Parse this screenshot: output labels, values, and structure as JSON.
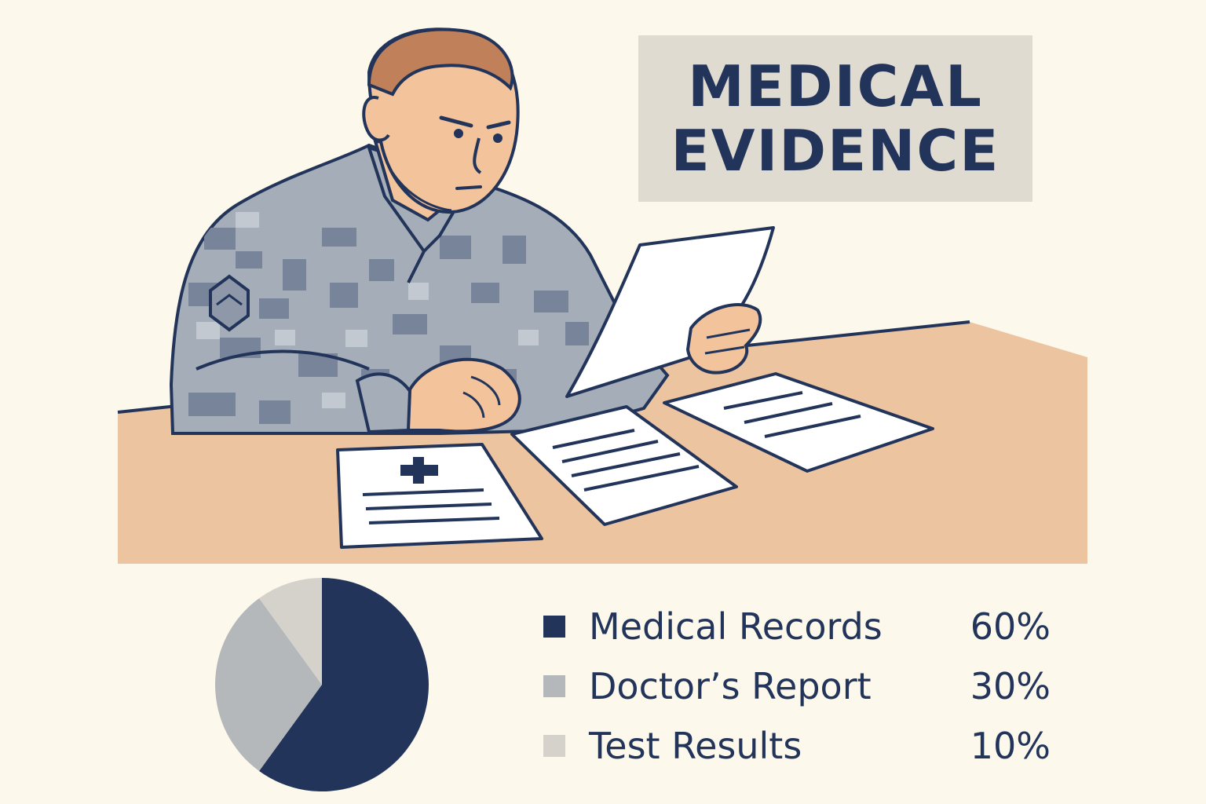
{
  "title": {
    "line1": "MEDICAL",
    "line2": "EVIDENCE"
  },
  "colors": {
    "background": "#fdf8ec",
    "navy": "#22345a",
    "mid_gray": "#b4b8ba",
    "light_gray": "#d5d2cc",
    "desk": "#ecc4a0",
    "skin": "#f3c49c",
    "hair": "#c0805a",
    "camo_base": "#a4adb8",
    "camo_dark": "#78849a"
  },
  "chart_data": {
    "type": "pie",
    "categories": [
      "Medical Records",
      "Doctor’s Report",
      "Test Results"
    ],
    "values": [
      60,
      30,
      10
    ],
    "value_labels": [
      "60%",
      "30%",
      "10%"
    ],
    "colors": [
      "#22345a",
      "#b4b8ba",
      "#d5d2cc"
    ],
    "legend_position": "right",
    "title": ""
  },
  "illustration": {
    "icons": [
      "soldier-figure",
      "document-icon",
      "medical-cross-icon",
      "desk"
    ]
  }
}
